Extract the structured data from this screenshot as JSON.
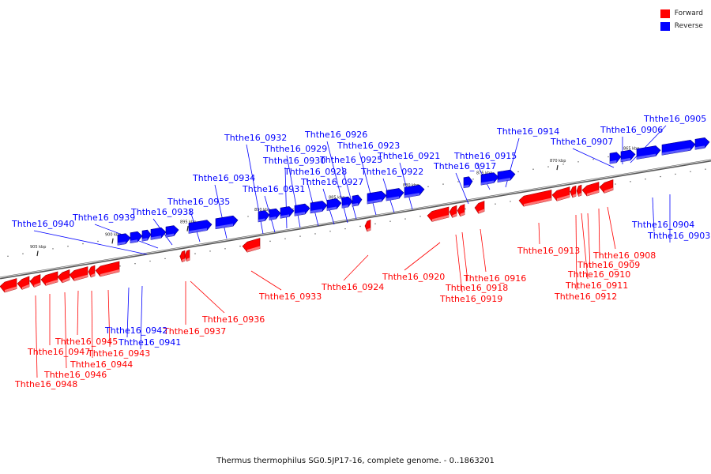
{
  "legend": {
    "forward_label": "Forward",
    "reverse_label": "Reverse",
    "forward_color": "#ff0000",
    "reverse_color": "#0000ff"
  },
  "caption": "Thermus thermophilus SG0.5JP17-16, complete genome. - 0..1863201",
  "ticks": [
    "865 kbp",
    "870 kbp",
    "875 kbp",
    "880 kbp",
    "885 kbp",
    "890 kbp",
    "895 kbp",
    "900 kbp",
    "905 kbp"
  ],
  "genes": [
    {
      "name": "Ththe16_0903",
      "strand": "reverse"
    },
    {
      "name": "Ththe16_0904",
      "strand": "reverse"
    },
    {
      "name": "Ththe16_0905",
      "strand": "reverse"
    },
    {
      "name": "Ththe16_0906",
      "strand": "reverse"
    },
    {
      "name": "Ththe16_0907",
      "strand": "reverse"
    },
    {
      "name": "Ththe16_0908",
      "strand": "forward"
    },
    {
      "name": "Ththe16_0909",
      "strand": "forward"
    },
    {
      "name": "Ththe16_0910",
      "strand": "forward"
    },
    {
      "name": "Ththe16_0911",
      "strand": "forward"
    },
    {
      "name": "Ththe16_0912",
      "strand": "forward"
    },
    {
      "name": "Ththe16_0913",
      "strand": "forward"
    },
    {
      "name": "Ththe16_0914",
      "strand": "reverse"
    },
    {
      "name": "Ththe16_0915",
      "strand": "reverse"
    },
    {
      "name": "Ththe16_0916",
      "strand": "forward"
    },
    {
      "name": "Ththe16_0917",
      "strand": "reverse"
    },
    {
      "name": "Ththe16_0918",
      "strand": "forward"
    },
    {
      "name": "Ththe16_0919",
      "strand": "forward"
    },
    {
      "name": "Ththe16_0920",
      "strand": "forward"
    },
    {
      "name": "Ththe16_0921",
      "strand": "reverse"
    },
    {
      "name": "Ththe16_0922",
      "strand": "reverse"
    },
    {
      "name": "Ththe16_0923",
      "strand": "reverse"
    },
    {
      "name": "Ththe16_0924",
      "strand": "forward"
    },
    {
      "name": "Ththe16_0925",
      "strand": "reverse"
    },
    {
      "name": "Ththe16_0926",
      "strand": "reverse"
    },
    {
      "name": "Ththe16_0927",
      "strand": "reverse"
    },
    {
      "name": "Ththe16_0928",
      "strand": "reverse"
    },
    {
      "name": "Ththe16_0929",
      "strand": "reverse"
    },
    {
      "name": "Ththe16_0930",
      "strand": "reverse"
    },
    {
      "name": "Ththe16_0931",
      "strand": "reverse"
    },
    {
      "name": "Ththe16_0932",
      "strand": "reverse"
    },
    {
      "name": "Ththe16_0933",
      "strand": "forward"
    },
    {
      "name": "Ththe16_0934",
      "strand": "reverse"
    },
    {
      "name": "Ththe16_0935",
      "strand": "reverse"
    },
    {
      "name": "Ththe16_0936",
      "strand": "forward"
    },
    {
      "name": "Ththe16_0937",
      "strand": "forward"
    },
    {
      "name": "Ththe16_0938",
      "strand": "reverse"
    },
    {
      "name": "Ththe16_0939",
      "strand": "reverse"
    },
    {
      "name": "Ththe16_0940",
      "strand": "reverse"
    },
    {
      "name": "Ththe16_0941",
      "strand": "reverse"
    },
    {
      "name": "Ththe16_0942",
      "strand": "reverse"
    },
    {
      "name": "Ththe16_0943",
      "strand": "forward"
    },
    {
      "name": "Ththe16_0944",
      "strand": "forward"
    },
    {
      "name": "Ththe16_0945",
      "strand": "forward"
    },
    {
      "name": "Ththe16_0946",
      "strand": "forward"
    },
    {
      "name": "Ththe16_0947",
      "strand": "forward"
    },
    {
      "name": "Ththe16_0948",
      "strand": "forward"
    }
  ]
}
